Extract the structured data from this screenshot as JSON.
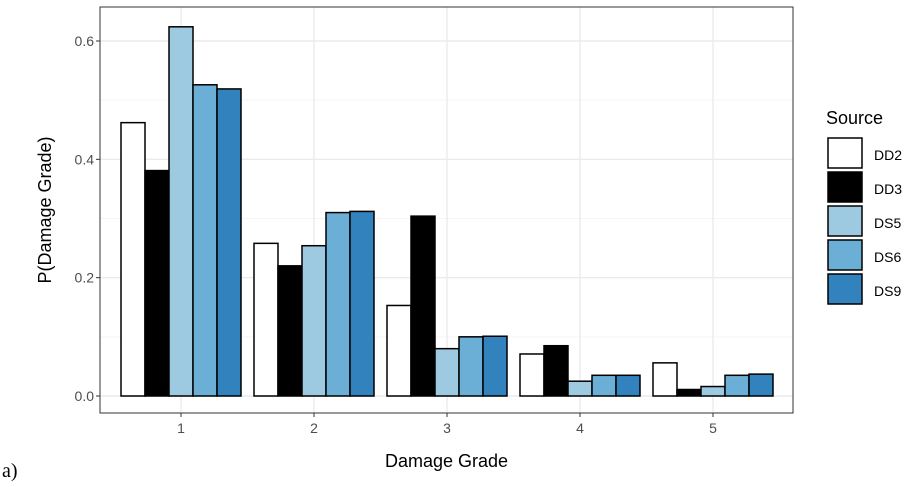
{
  "panel_label": "a)",
  "colors": {
    "background": "#ffffff",
    "panel_border": "#333333",
    "grid_major": "#ebebeb",
    "grid_minor": "#f5f5f5",
    "bar_outline": "#000000",
    "tick_text": "#4d4d4d"
  },
  "chart_data": {
    "type": "bar",
    "subtype": "grouped",
    "xlabel": "Damage Grade",
    "ylabel": "P(Damage Grade)",
    "categories": [
      "1",
      "2",
      "3",
      "4",
      "5"
    ],
    "ylim": [
      0,
      0.65
    ],
    "yticks": [
      0.0,
      0.2,
      0.4,
      0.6
    ],
    "ytick_labels": [
      "0.0",
      "0.2",
      "0.4",
      "0.6"
    ],
    "grid": true,
    "legend": {
      "title": "Source",
      "position": "right"
    },
    "series": [
      {
        "name": "DD2",
        "color": "#ffffff",
        "values": [
          0.462,
          0.258,
          0.153,
          0.071,
          0.056
        ]
      },
      {
        "name": "DD3",
        "color": "#000000",
        "values": [
          0.381,
          0.22,
          0.304,
          0.085,
          0.011
        ]
      },
      {
        "name": "DS5",
        "color": "#9ecae1",
        "values": [
          0.624,
          0.254,
          0.08,
          0.025,
          0.016
        ]
      },
      {
        "name": "DS6",
        "color": "#6baed6",
        "values": [
          0.526,
          0.31,
          0.1,
          0.035,
          0.035
        ]
      },
      {
        "name": "DS9",
        "color": "#3182bd",
        "values": [
          0.519,
          0.312,
          0.101,
          0.035,
          0.037
        ]
      }
    ]
  }
}
